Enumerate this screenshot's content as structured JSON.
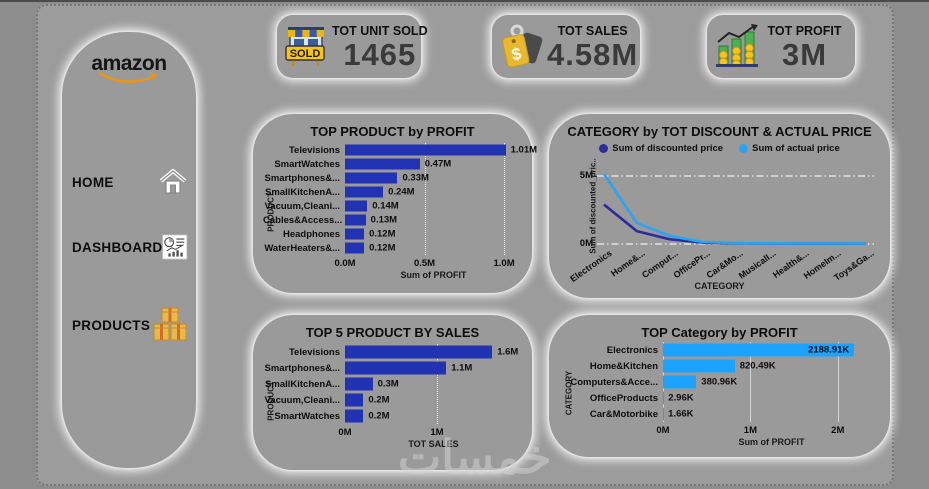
{
  "page": {
    "watermark": "خمسات"
  },
  "sidebar": {
    "logo_text": "amazon",
    "items": [
      {
        "label": "HOME"
      },
      {
        "label": "DASHBOARD"
      },
      {
        "label": "PRODUCTS"
      }
    ]
  },
  "kpis": [
    {
      "title": "TOT UNIT SOLD",
      "value": "1465",
      "icon": "shop-sold-icon"
    },
    {
      "title": "TOT SALES",
      "value": "4.58M",
      "icon": "price-tag-icon"
    },
    {
      "title": "TOT PROFIT",
      "value": "3M",
      "icon": "profit-coins-icon"
    }
  ],
  "colors": {
    "dark_blue_bar": "#2133b3",
    "light_blue_bar": "#1da2ff",
    "line_discounted": "#2b2d9c",
    "line_actual": "#2aa3f7",
    "background": "#9c9c9c"
  },
  "chart_data": [
    {
      "type": "bar",
      "title": "TOP PRODUCT by PROFIT",
      "categories": [
        "Televisions",
        "SmartWatches",
        "Smartphones&...",
        "SmallKitchenA...",
        "Vacuum,Cleani...",
        "Cables&Access...",
        "Headphones",
        "WaterHeaters&..."
      ],
      "values": [
        1.01,
        0.47,
        0.33,
        0.24,
        0.14,
        0.13,
        0.12,
        0.12
      ],
      "value_labels": [
        "1.01M",
        "0.47M",
        "0.33M",
        "0.24M",
        "0.14M",
        "0.13M",
        "0.12M",
        "0.12M"
      ],
      "xlabel": "Sum of PROFIT",
      "ylabel": "PRODUCT",
      "xticks": [
        {
          "label": "0.0M",
          "value": 0
        },
        {
          "label": "0.5M",
          "value": 0.5
        },
        {
          "label": "1.0M",
          "value": 1.0
        }
      ],
      "xlim": [
        0,
        1.05
      ],
      "bar_color": "#2133b3",
      "grid": "dotted"
    },
    {
      "type": "line",
      "title": "CATEGORY by TOT DISCOUNT & ACTUAL PRICE",
      "categories": [
        "Electronics",
        "Home&...",
        "Comput...",
        "OfficePr...",
        "Car&Mo...",
        "MusicalI...",
        "Health&...",
        "HomeIm...",
        "Toys&Ga..."
      ],
      "series": [
        {
          "name": "Sum of discounted price",
          "color": "#2b2d9c",
          "values": [
            2.9,
            0.95,
            0.35,
            0.1,
            0.05,
            0.04,
            0.03,
            0.03,
            0.02
          ]
        },
        {
          "name": "Sum of actual price",
          "color": "#2aa3f7",
          "values": [
            5.15,
            1.55,
            0.6,
            0.15,
            0.07,
            0.05,
            0.04,
            0.04,
            0.03
          ]
        }
      ],
      "yticks": [
        {
          "label": "0M",
          "value": 0
        },
        {
          "label": "5M",
          "value": 5
        }
      ],
      "ylim": [
        0,
        5.7
      ],
      "xlabel": "CATEGORY",
      "ylabel": "Sum of discounted_pric..",
      "legend_position": "top",
      "grid": "dash-dot"
    },
    {
      "type": "bar",
      "title": "TOP 5 PRODUCT BY SALES",
      "categories": [
        "Televisions",
        "Smartphones&...",
        "SmallKitchenA...",
        "Vacuum,Cleani...",
        "SmartWatches"
      ],
      "values": [
        1.6,
        1.1,
        0.3,
        0.2,
        0.2
      ],
      "value_labels": [
        "1.6M",
        "1.1M",
        "0.3M",
        "0.2M",
        "0.2M"
      ],
      "xlabel": "TOT SALES",
      "ylabel": "PRODUCT",
      "xticks": [
        {
          "label": "0M",
          "value": 0
        },
        {
          "label": "1M",
          "value": 1
        }
      ],
      "xlim": [
        0,
        1.75
      ],
      "bar_color": "#2133b3",
      "grid": "dotted"
    },
    {
      "type": "bar",
      "title": "TOP Category by PROFIT",
      "categories": [
        "Electronics",
        "Home&Kitchen",
        "Computers&Acce...",
        "OfficeProducts",
        "Car&Motorbike"
      ],
      "values": [
        2188.91,
        820.49,
        380.96,
        2.96,
        1.66
      ],
      "value_labels": [
        "2188.91K",
        "820.49K",
        "380.96K",
        "2.96K",
        "1.66K"
      ],
      "label_inside": [
        true,
        false,
        false,
        false,
        false
      ],
      "xlabel": "Sum of PROFIT",
      "ylabel": "CATEGORY",
      "xticks": [
        {
          "label": "0M",
          "value": 0
        },
        {
          "label": "1M",
          "value": 1000
        },
        {
          "label": "2M",
          "value": 2000
        }
      ],
      "xlim": [
        0,
        2300
      ],
      "bar_color": "#1da2ff",
      "grid": "solid"
    }
  ]
}
